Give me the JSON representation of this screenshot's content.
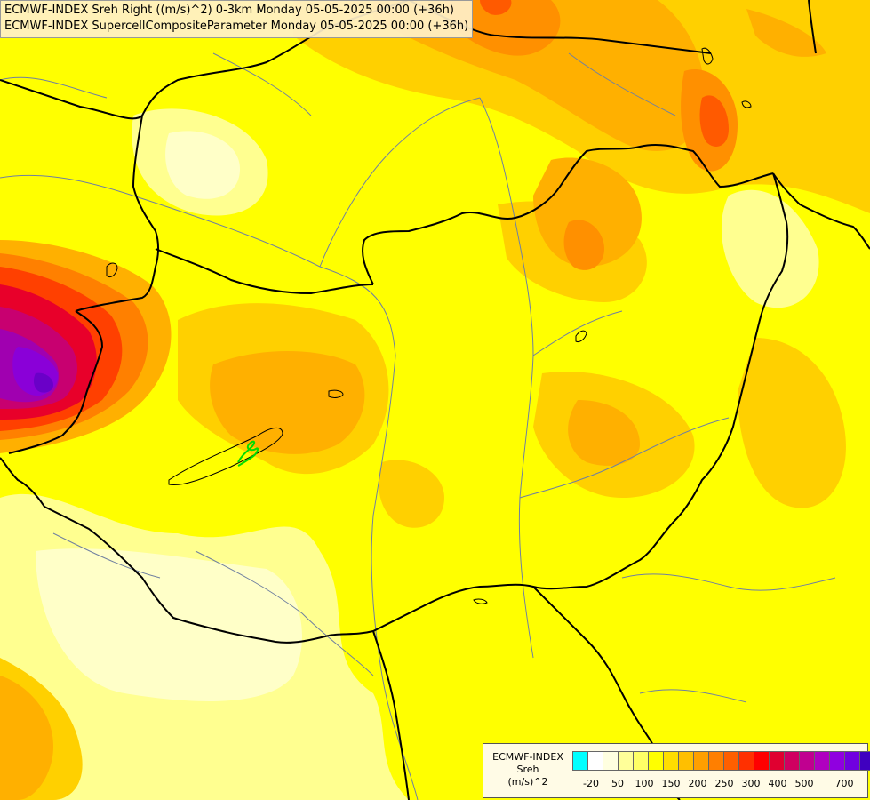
{
  "header": {
    "line1": "ECMWF-INDEX Sreh Right ((m/s)^2) 0-3km Monday 05-05-2025 00:00 (+36h)",
    "line2": "ECMWF-INDEX SupercellCompositeParameter Monday 05-05-2025 00:00 (+36h)"
  },
  "legend": {
    "title_line1": "ECMWF-INDEX",
    "title_line2": "Sreh",
    "title_line3": "(m/s)^2",
    "colors": [
      "#00ffff",
      "#ffffff",
      "#ffffe0",
      "#ffff99",
      "#ffff66",
      "#ffff00",
      "#ffdd00",
      "#ffbf00",
      "#ff9f00",
      "#ff7f00",
      "#ff5f00",
      "#ff3000",
      "#ff0000",
      "#e00030",
      "#d00060",
      "#c00090",
      "#b000c0",
      "#9000e0",
      "#7000e0",
      "#4000c0",
      "#2000a0",
      "#000080"
    ],
    "tick_labels": [
      "-20",
      "50",
      "100",
      "150",
      "200",
      "250",
      "300",
      "400",
      "500",
      "700"
    ]
  },
  "map": {
    "field_palette": {
      "light": "#ffffc0",
      "pale": "#ffff80",
      "yellow": "#ffff00",
      "gold": "#ffd700",
      "amber": "#ffb300",
      "orange": "#ff8c00",
      "red_orange": "#ff5000",
      "red": "#e0002a",
      "magenta": "#c00080",
      "purple": "#8000d0"
    },
    "border_color": "#000000",
    "river_color": "#7080a0",
    "scp_contour_color": "#00dd00"
  }
}
